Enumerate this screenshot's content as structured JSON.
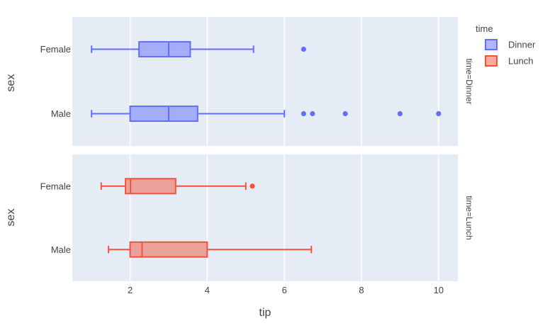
{
  "chart_data": {
    "type": "box",
    "orientation": "horizontal",
    "xlabel": "tip",
    "ylabel": "sex",
    "xlim": [
      0.5,
      10.5
    ],
    "xticks": [
      2,
      4,
      6,
      8,
      10
    ],
    "categories": [
      "Male",
      "Female"
    ],
    "legend": {
      "title": "time",
      "position": "top-right",
      "entries": [
        "Dinner",
        "Lunch"
      ]
    },
    "colors": {
      "Dinner": "#636efa",
      "Lunch": "#ef553b",
      "plot_bg": "#e5ecf6",
      "grid": "#ffffff"
    },
    "facets": [
      {
        "label": "time=Dinner",
        "series": "Dinner",
        "boxes": [
          {
            "category": "Male",
            "whisker_low": 1.0,
            "q1": 2.0,
            "median": 3.0,
            "q3": 3.75,
            "whisker_high": 6.0,
            "outliers": [
              6.5,
              6.73,
              7.58,
              9.0,
              10.0
            ]
          },
          {
            "category": "Female",
            "whisker_low": 1.0,
            "q1": 2.23,
            "median": 3.0,
            "q3": 3.56,
            "whisker_high": 5.2,
            "outliers": [
              6.5
            ]
          }
        ]
      },
      {
        "label": "time=Lunch",
        "series": "Lunch",
        "boxes": [
          {
            "category": "Male",
            "whisker_low": 1.44,
            "q1": 2.0,
            "median": 2.31,
            "q3": 4.0,
            "whisker_high": 6.7,
            "outliers": []
          },
          {
            "category": "Female",
            "whisker_low": 1.25,
            "q1": 1.88,
            "median": 2.01,
            "q3": 3.18,
            "whisker_high": 5.0,
            "outliers": [
              5.17
            ]
          }
        ]
      }
    ]
  }
}
